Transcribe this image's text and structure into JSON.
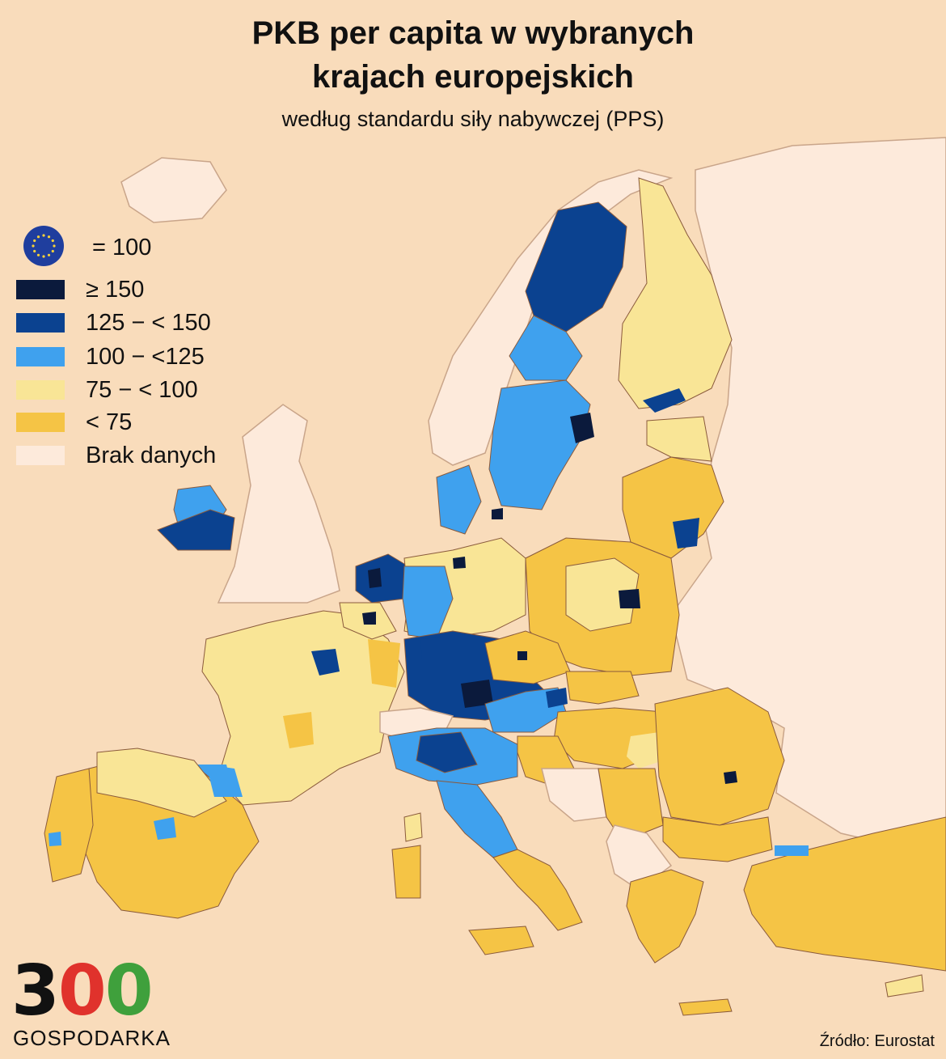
{
  "title_line1": "PKB per capita w wybranych",
  "title_line2": "krajach europejskich",
  "subtitle": "według standardu siły nabywczej (PPS)",
  "legend": {
    "eu_label": "= 100",
    "items": [
      {
        "label": "≥ 150",
        "color": "#0b1a3c"
      },
      {
        "label": "125 − < 150",
        "color": "#0b4290"
      },
      {
        "label": "100 − <125",
        "color": "#3fa1ee"
      },
      {
        "label": "75 − < 100",
        "color": "#f9e596"
      },
      {
        "label": "< 75",
        "color": "#f5c445"
      },
      {
        "label": "Brak danych",
        "color": "#fdeadb"
      }
    ]
  },
  "logo": {
    "digits": [
      "3",
      "0",
      "0"
    ],
    "digit_colors": [
      "#111111",
      "#e0322c",
      "#3fa03c"
    ],
    "text": "GOSPODARKA"
  },
  "source": "Źródło: Eurostat",
  "colors": {
    "sea": "#f9dcbb",
    "no_data": "#fdeadb",
    "borders": "#8a5a3c"
  }
}
